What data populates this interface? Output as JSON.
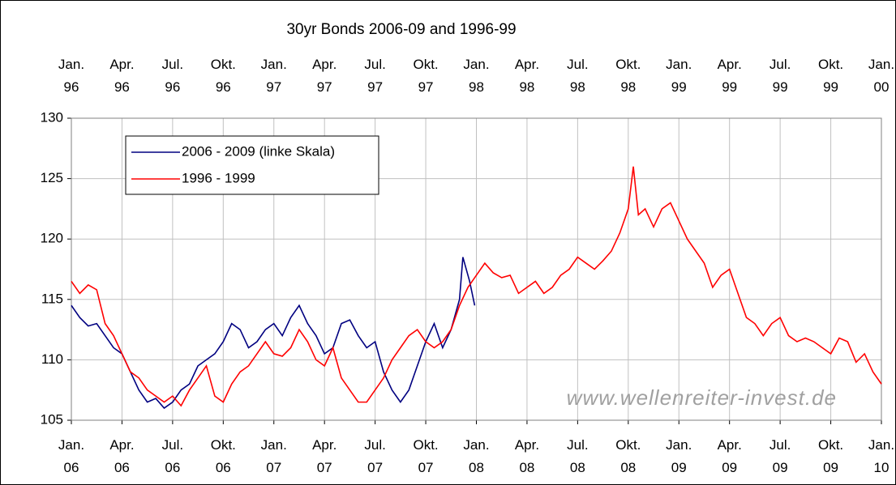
{
  "chart_data": {
    "type": "line",
    "title": "30yr Bonds 2006-09 and 1996-99",
    "annotations": [
      "www.wellenreiter-invest.de"
    ],
    "xlim": [
      0,
      48
    ],
    "ylim": [
      105,
      130
    ],
    "yticks": [
      105,
      110,
      115,
      120,
      125,
      130
    ],
    "grid": true,
    "legend": "upper left",
    "xticks": [
      {
        "value": 0,
        "label": "Jan.\n06"
      },
      {
        "value": 3,
        "label": "Apr.\n06"
      },
      {
        "value": 6,
        "label": "Jul.\n06"
      },
      {
        "value": 9,
        "label": "Okt.\n06"
      },
      {
        "value": 12,
        "label": "Jan.\n07"
      },
      {
        "value": 15,
        "label": "Apr.\n07"
      },
      {
        "value": 18,
        "label": "Jul.\n07"
      },
      {
        "value": 21,
        "label": "Okt.\n07"
      },
      {
        "value": 24,
        "label": "Jan.\n08"
      },
      {
        "value": 27,
        "label": "Apr.\n08"
      },
      {
        "value": 30,
        "label": "Jul.\n08"
      },
      {
        "value": 33,
        "label": "Okt.\n08"
      },
      {
        "value": 36,
        "label": "Jan.\n09"
      },
      {
        "value": 39,
        "label": "Apr.\n09"
      },
      {
        "value": 42,
        "label": "Jul.\n09"
      },
      {
        "value": 45,
        "label": "Okt.\n09"
      },
      {
        "value": 48,
        "label": "Jan.\n10"
      }
    ],
    "x2ticks": [
      {
        "value": 0,
        "label": "Jan.\n96"
      },
      {
        "value": 3,
        "label": "Apr.\n96"
      },
      {
        "value": 6,
        "label": "Jul.\n96"
      },
      {
        "value": 9,
        "label": "Okt.\n96"
      },
      {
        "value": 12,
        "label": "Jan.\n97"
      },
      {
        "value": 15,
        "label": "Apr.\n97"
      },
      {
        "value": 18,
        "label": "Jul.\n97"
      },
      {
        "value": 21,
        "label": "Okt.\n97"
      },
      {
        "value": 24,
        "label": "Jan.\n98"
      },
      {
        "value": 27,
        "label": "Apr.\n98"
      },
      {
        "value": 30,
        "label": "Jul.\n98"
      },
      {
        "value": 33,
        "label": "Okt.\n98"
      },
      {
        "value": 36,
        "label": "Jan.\n99"
      },
      {
        "value": 39,
        "label": "Apr.\n99"
      },
      {
        "value": 42,
        "label": "Jul.\n99"
      },
      {
        "value": 45,
        "label": "Okt.\n99"
      },
      {
        "value": 48,
        "label": "Jan.\n00"
      }
    ],
    "series": [
      {
        "name": "2006 - 2009 (linke Skala)",
        "color": "#000080",
        "x": [
          0,
          0.5,
          1,
          1.5,
          2,
          2.5,
          3,
          3.5,
          4,
          4.5,
          5,
          5.5,
          6,
          6.5,
          7,
          7.5,
          8,
          8.5,
          9,
          9.5,
          10,
          10.5,
          11,
          11.5,
          12,
          12.5,
          13,
          13.5,
          14,
          14.5,
          15,
          15.5,
          16,
          16.5,
          17,
          17.5,
          18,
          18.5,
          19,
          19.5,
          20,
          20.5,
          21,
          21.5,
          22,
          22.5,
          23,
          23.2,
          23.6,
          23.9
        ],
        "values": [
          114.5,
          113.5,
          112.8,
          113,
          112,
          111,
          110.5,
          109,
          107.5,
          106.5,
          106.8,
          106,
          106.5,
          107.5,
          108,
          109.5,
          110,
          110.5,
          111.5,
          113,
          112.5,
          111,
          111.5,
          112.5,
          113,
          112,
          113.5,
          114.5,
          113,
          112,
          110.5,
          111,
          113,
          113.3,
          112,
          111,
          111.5,
          109,
          107.5,
          106.5,
          107.5,
          109.5,
          111.5,
          113,
          111,
          112.5,
          115,
          118.5,
          116.5,
          114.5
        ]
      },
      {
        "name": "1996 - 1999",
        "color": "#ff0000",
        "x": [
          0,
          0.5,
          1,
          1.5,
          2,
          2.5,
          3,
          3.5,
          4,
          4.5,
          5,
          5.5,
          6,
          6.5,
          7,
          7.5,
          8,
          8.5,
          9,
          9.5,
          10,
          10.5,
          11,
          11.5,
          12,
          12.5,
          13,
          13.5,
          14,
          14.5,
          15,
          15.5,
          16,
          16.5,
          17,
          17.5,
          18,
          18.5,
          19,
          19.5,
          20,
          20.5,
          21,
          21.5,
          22,
          22.5,
          23,
          23.5,
          24,
          24.5,
          25,
          25.5,
          26,
          26.5,
          27,
          27.5,
          28,
          28.5,
          29,
          29.5,
          30,
          30.5,
          31,
          31.5,
          32,
          32.5,
          33,
          33.3,
          33.6,
          34,
          34.5,
          35,
          35.5,
          36,
          36.5,
          37,
          37.5,
          38,
          38.5,
          39,
          39.5,
          40,
          40.5,
          41,
          41.5,
          42,
          42.5,
          43,
          43.5,
          44,
          44.5,
          45,
          45.5,
          46,
          46.5,
          47,
          47.5,
          48
        ],
        "values": [
          116.5,
          115.5,
          116.2,
          115.8,
          113,
          112,
          110.5,
          109,
          108.5,
          107.5,
          107,
          106.5,
          107,
          106.2,
          107.5,
          108.5,
          109.5,
          107,
          106.5,
          108,
          109,
          109.5,
          110.5,
          111.5,
          110.5,
          110.3,
          111,
          112.5,
          111.5,
          110,
          109.5,
          111,
          108.5,
          107.5,
          106.5,
          106.5,
          107.5,
          108.5,
          110,
          111,
          112,
          112.5,
          111.5,
          111,
          111.5,
          112.5,
          114.5,
          116,
          117,
          118,
          117.2,
          116.8,
          117,
          115.5,
          116,
          116.5,
          115.5,
          116,
          117,
          117.5,
          118.5,
          118,
          117.5,
          118.2,
          119,
          120.5,
          122.5,
          126,
          122,
          122.5,
          121,
          122.5,
          123,
          121.5,
          120,
          119,
          118,
          116,
          117,
          117.5,
          115.5,
          113.5,
          113,
          112,
          113,
          113.5,
          112,
          111.5,
          111.8,
          111.5,
          111,
          110.5,
          111.8,
          111.5,
          109.8,
          110.5,
          109,
          108
        ]
      }
    ]
  }
}
